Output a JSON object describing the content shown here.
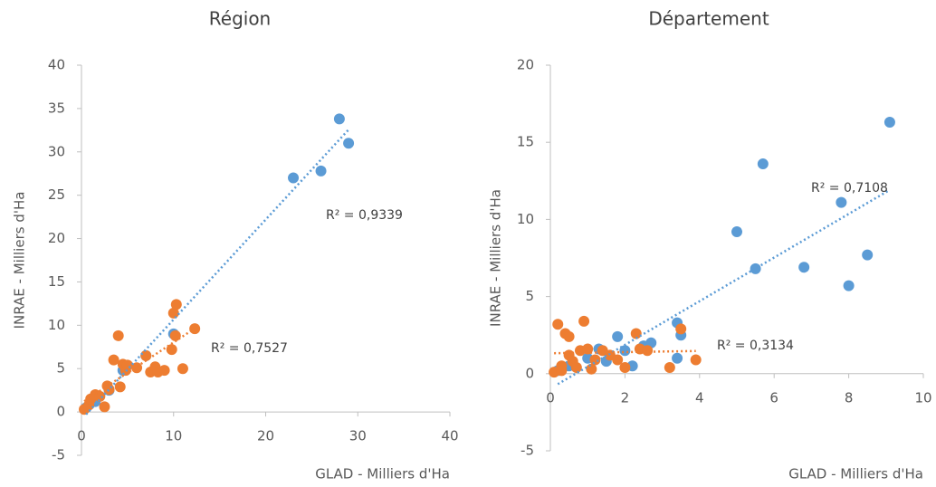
{
  "chart_data": [
    {
      "type": "scatter",
      "title": "Région",
      "x_label": "GLAD - Milliers d'Ha",
      "y_label": "INRAE - Milliers d'Ha",
      "xlim": [
        0,
        40
      ],
      "ylim": [
        -5,
        40
      ],
      "xticks": [
        0,
        10,
        20,
        30,
        40
      ],
      "yticks": [
        -5,
        0,
        5,
        10,
        15,
        20,
        25,
        30,
        35,
        40
      ],
      "series": [
        {
          "color": "#5b9bd5",
          "trendline": true,
          "x": [
            0.5,
            1.5,
            3,
            4.5,
            7,
            10,
            23,
            26,
            28,
            29
          ],
          "values": [
            0.5,
            1.2,
            2.5,
            4.8,
            6.5,
            9,
            27,
            27.8,
            33.8,
            31
          ]
        },
        {
          "color": "#ed7d31",
          "trendline": true,
          "x": [
            0.3,
            0.8,
            1,
            1.5,
            2,
            2.5,
            2.8,
            3,
            3.5,
            4,
            4.2,
            4.5,
            4.8,
            5,
            6,
            7,
            7.5,
            8,
            8.3,
            9,
            9.8,
            10,
            10.3,
            10.2,
            11,
            12.3
          ],
          "values": [
            0.3,
            0.8,
            1.5,
            2,
            1.8,
            0.6,
            3,
            2.6,
            6,
            8.8,
            2.9,
            5.5,
            4.8,
            5.4,
            5.1,
            6.5,
            4.6,
            5.2,
            4.6,
            4.8,
            7.2,
            11.4,
            12.4,
            8.8,
            5,
            9.6
          ]
        }
      ],
      "annotations": [
        "R² = 0,9339",
        "R² = 0,7527"
      ]
    },
    {
      "type": "scatter",
      "title": "Département",
      "x_label": "GLAD - Milliers d'Ha",
      "y_label": "INRAE - Milliers d'Ha",
      "xlim": [
        0,
        10
      ],
      "ylim": [
        -5,
        20
      ],
      "xticks": [
        0,
        2,
        4,
        6,
        8,
        10
      ],
      "yticks": [
        -5,
        0,
        5,
        10,
        15,
        20
      ],
      "series": [
        {
          "color": "#5b9bd5",
          "trendline": true,
          "x": [
            5,
            5.7,
            5.5,
            6.8,
            7.8,
            8,
            8.5,
            9.1,
            3.4,
            3.5,
            3.4,
            2.2,
            1.8,
            2.5,
            2.7,
            1.3,
            1,
            0.5,
            0.2,
            1.5,
            2
          ],
          "values": [
            9.2,
            13.6,
            6.8,
            6.9,
            11.1,
            5.7,
            7.7,
            16.3,
            3.3,
            2.5,
            1,
            0.5,
            2.4,
            1.8,
            2,
            1.6,
            1,
            0.5,
            0.2,
            0.8,
            1.5
          ]
        },
        {
          "color": "#ed7d31",
          "trendline": true,
          "x": [
            0.1,
            0.2,
            0.3,
            0.4,
            0.5,
            0.5,
            0.6,
            0.8,
            0.9,
            1,
            1.2,
            1.4,
            1.6,
            1.8,
            2,
            2.3,
            2.4,
            2.6,
            3.2,
            3.5,
            3.9,
            0.3,
            0.7,
            1.1
          ],
          "values": [
            0.1,
            3.2,
            0.5,
            2.6,
            2.4,
            1.2,
            0.8,
            1.5,
            3.4,
            1.6,
            0.9,
            1.5,
            1.2,
            0.9,
            0.4,
            2.6,
            1.6,
            1.5,
            0.4,
            2.9,
            0.9,
            0.2,
            0.4,
            0.3
          ]
        }
      ],
      "annotations": [
        "R² = 0,7108",
        "R² = 0,3134"
      ]
    }
  ]
}
